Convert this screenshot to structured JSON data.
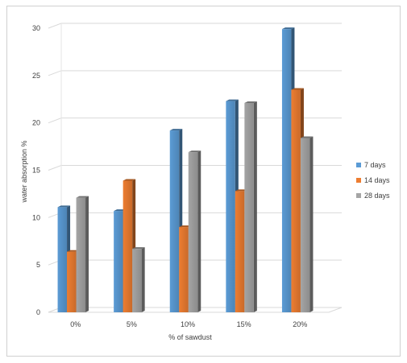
{
  "chart_data": {
    "type": "bar",
    "title": "",
    "xlabel": "% of sawdust",
    "ylabel": "water absorption %",
    "categories": [
      "0%",
      "5%",
      "10%",
      "15%",
      "20%"
    ],
    "ylim": [
      0,
      30
    ],
    "yticks": [
      0,
      5,
      10,
      15,
      20,
      25,
      30
    ],
    "grid": true,
    "legend_position": "right",
    "series": [
      {
        "name": "7 days",
        "color": "#5b9bd5",
        "values": [
          11.1,
          10.7,
          19.2,
          22.3,
          29.9
        ]
      },
      {
        "name": "14 days",
        "color": "#ed7d31",
        "values": [
          6.4,
          13.9,
          9.0,
          12.8,
          23.5
        ]
      },
      {
        "name": "28 days",
        "color": "#a5a5a5",
        "values": [
          12.1,
          6.7,
          16.9,
          22.1,
          18.4
        ]
      }
    ]
  }
}
